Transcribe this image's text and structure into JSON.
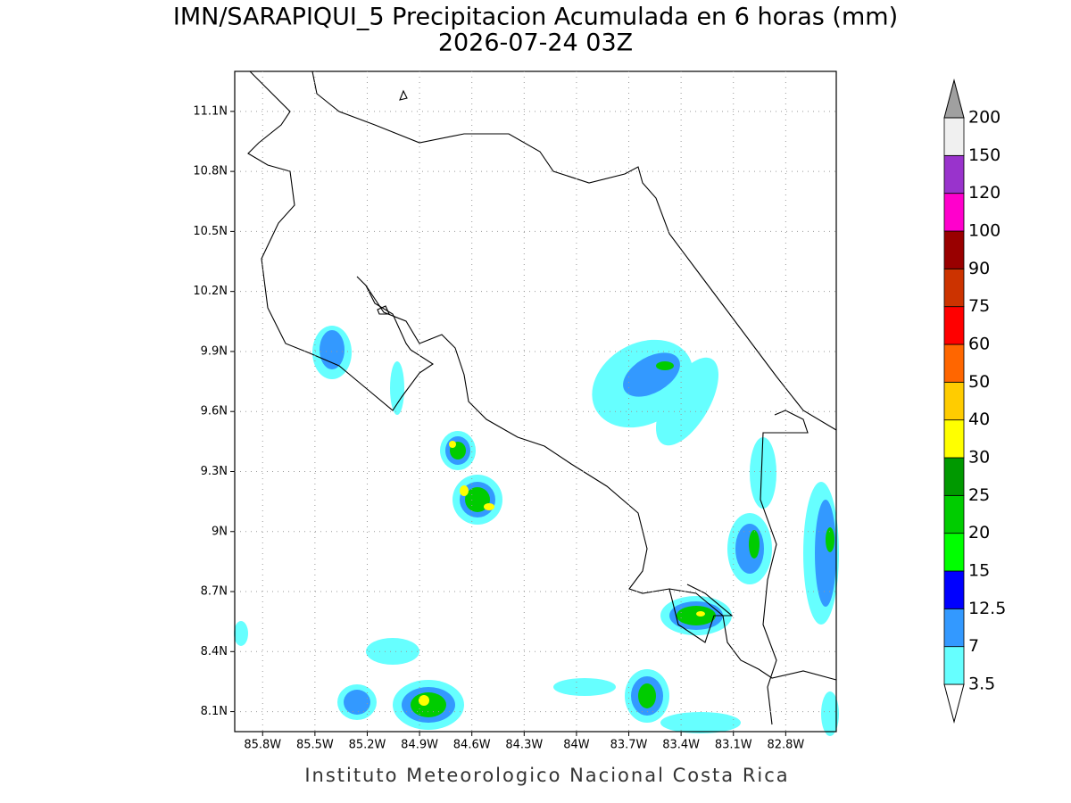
{
  "title": "IMN/SARAPIQUI_5 Precipitacion Acumulada en 6 horas (mm)",
  "subtitle": "2026-07-24 03Z",
  "map": {
    "xlim": [
      -85.96,
      -82.51
    ],
    "ylim": [
      8.0,
      11.3
    ],
    "xticks": [
      {
        "value": -85.8,
        "label": "85.8W"
      },
      {
        "value": -85.5,
        "label": "85.5W"
      },
      {
        "value": -85.2,
        "label": "85.2W"
      },
      {
        "value": -84.9,
        "label": "84.9W"
      },
      {
        "value": -84.6,
        "label": "84.6W"
      },
      {
        "value": -84.3,
        "label": "84.3W"
      },
      {
        "value": -84.0,
        "label": "84W"
      },
      {
        "value": -83.7,
        "label": "83.7W"
      },
      {
        "value": -83.4,
        "label": "83.4W"
      },
      {
        "value": -83.1,
        "label": "83.1W"
      },
      {
        "value": -82.8,
        "label": "82.8W"
      }
    ],
    "yticks": [
      {
        "value": 11.1,
        "label": "11.1N"
      },
      {
        "value": 10.8,
        "label": "10.8N"
      },
      {
        "value": 10.5,
        "label": "10.5N"
      },
      {
        "value": 10.2,
        "label": "10.2N"
      },
      {
        "value": 9.9,
        "label": "9.9N"
      },
      {
        "value": 9.6,
        "label": "9.6N"
      },
      {
        "value": 9.3,
        "label": "9.3N"
      },
      {
        "value": 9.0,
        "label": "9N"
      },
      {
        "value": 8.7,
        "label": "8.7N"
      },
      {
        "value": 8.4,
        "label": "8.4N"
      },
      {
        "value": 8.1,
        "label": "8.1N"
      }
    ],
    "grid": true
  },
  "colorbar": {
    "levels": [
      3.5,
      7,
      12.5,
      15,
      20,
      25,
      30,
      40,
      50,
      60,
      75,
      90,
      100,
      120,
      150,
      200
    ],
    "colors": [
      "#ffffff",
      "#66ffff",
      "#3399ff",
      "#0000ff",
      "#00ff00",
      "#00cc00",
      "#009900",
      "#ffff00",
      "#ffcc00",
      "#ff6600",
      "#ff0000",
      "#cc3300",
      "#990000",
      "#ff00cc",
      "#9933cc",
      "#f0f0f0",
      "#a0a0a0"
    ]
  },
  "footer": "Instituto Meteorologico Nacional Costa Rica"
}
